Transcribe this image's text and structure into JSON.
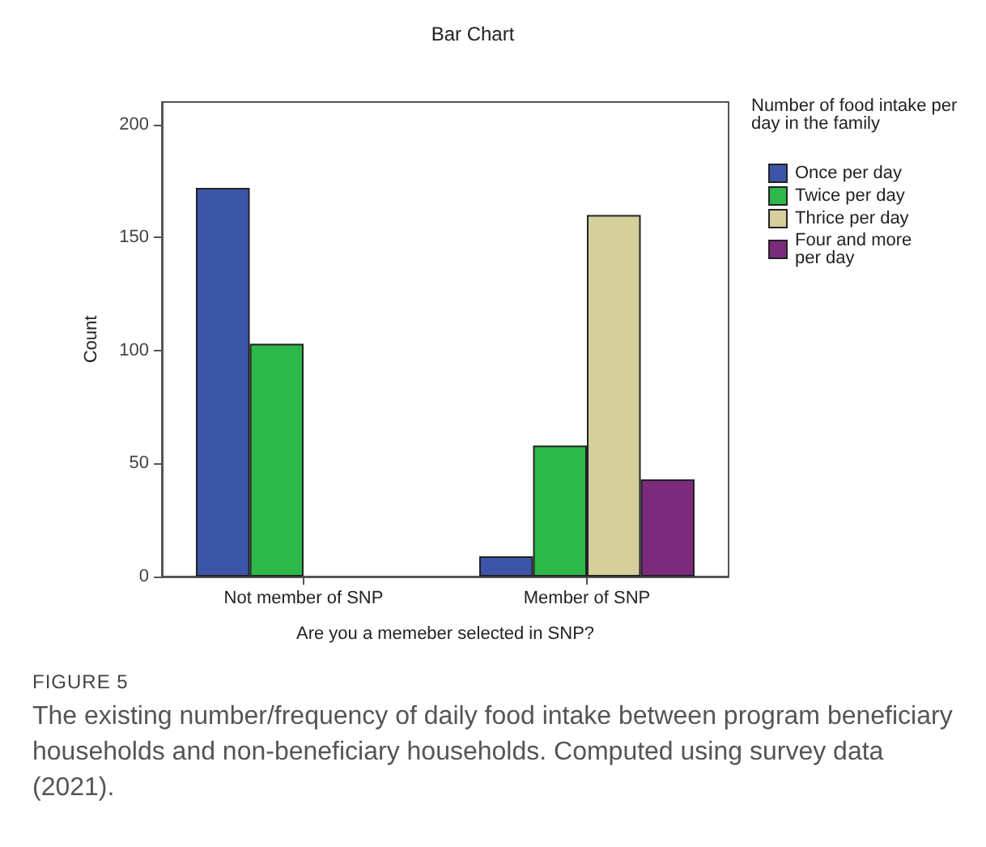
{
  "chart_data": {
    "type": "bar",
    "title": "Bar Chart",
    "xlabel": "Are you a memeber selected in SNP?",
    "ylabel": "Count",
    "legend_title": "Number of food intake per day in the family",
    "categories": [
      "Not member of SNP",
      "Member of SNP"
    ],
    "series": [
      {
        "name": "Once per day",
        "color": "#3c55a8",
        "values": [
          172,
          9
        ]
      },
      {
        "name": "Twice per day",
        "color": "#2db84a",
        "values": [
          103,
          58
        ]
      },
      {
        "name": "Thrice per day",
        "color": "#d4cf9b",
        "values": [
          null,
          160
        ]
      },
      {
        "name": "Four and more per day",
        "color": "#7b2a7c",
        "values": [
          null,
          43
        ]
      }
    ],
    "ylim": [
      0,
      210
    ],
    "yticks": [
      0,
      50,
      100,
      150,
      200
    ],
    "grid": false,
    "legend": "right",
    "annotations": [
      "FIGURE 5",
      "The existing number/frequency of daily food intake between program beneficiary households and non-beneficiary households. Computed using survey data (2021)."
    ]
  }
}
